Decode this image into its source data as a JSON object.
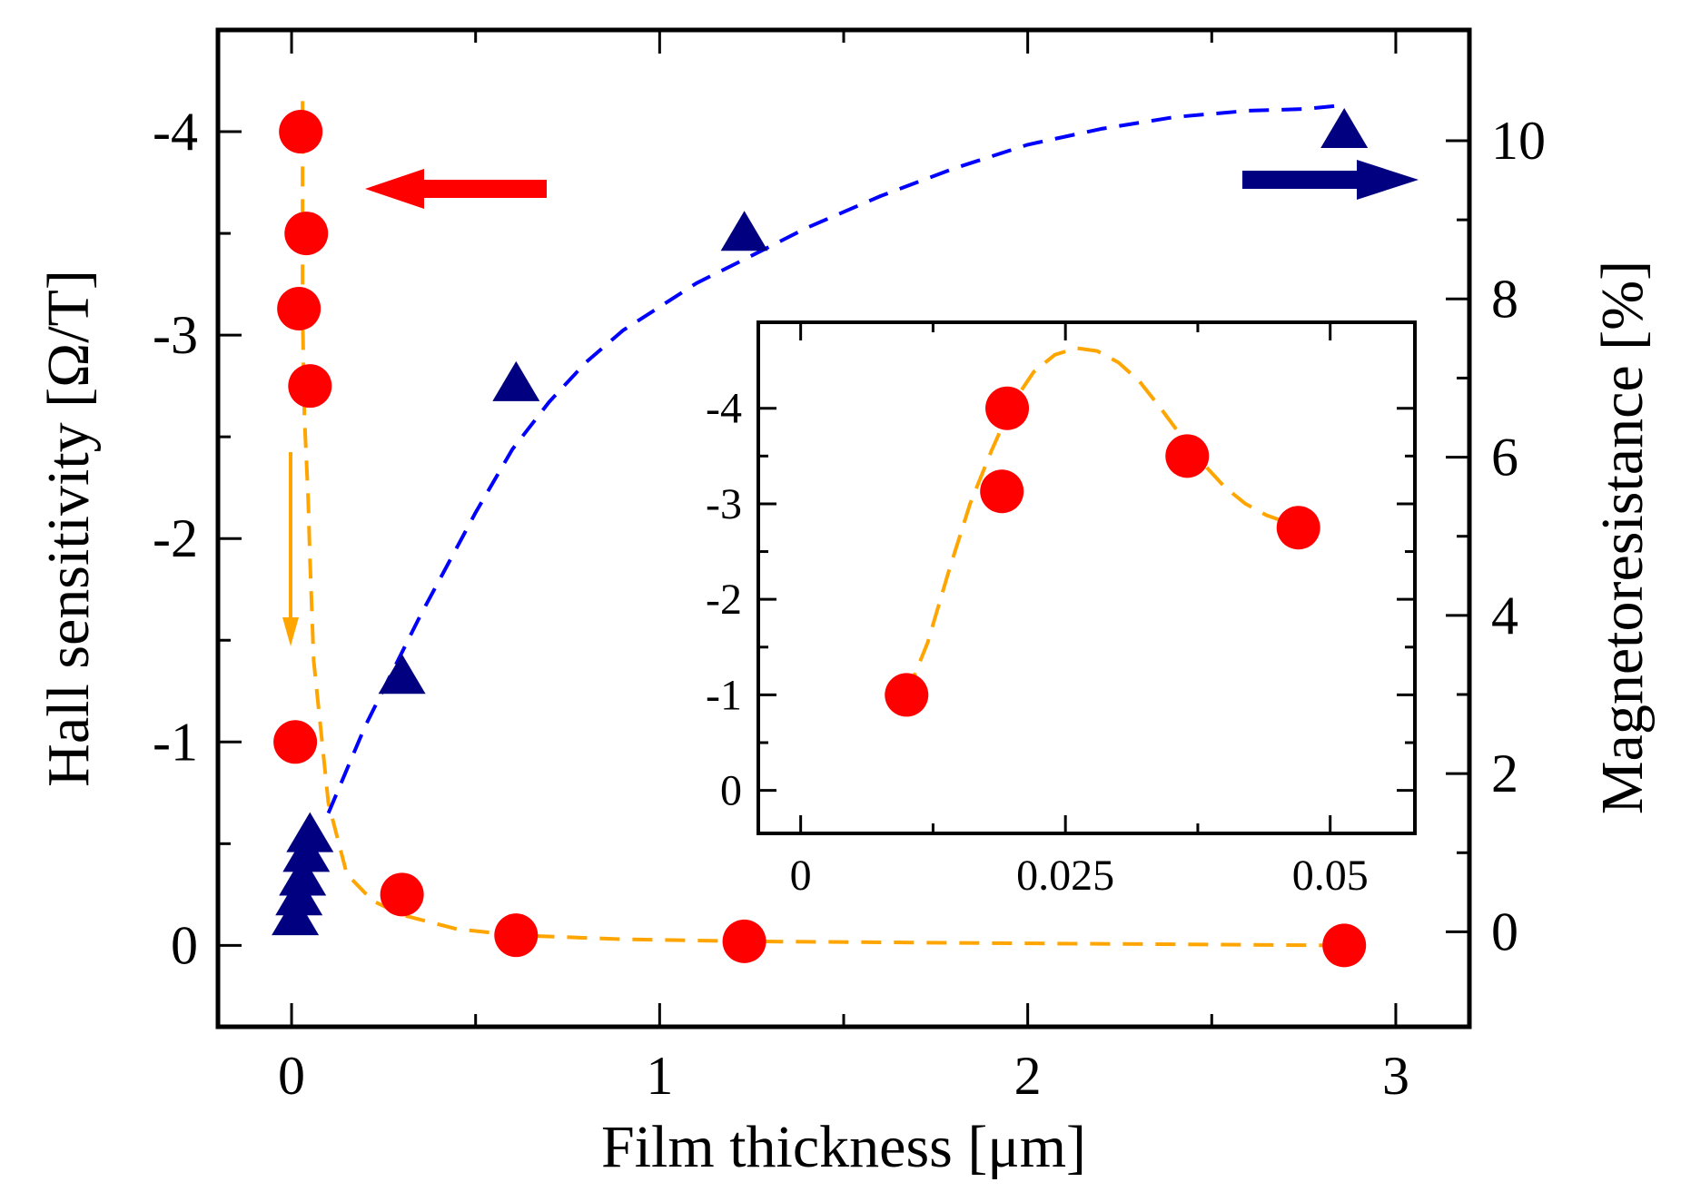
{
  "chart_data": [
    {
      "type": "scatter",
      "id": "main",
      "xlabel": "Film thickness [μm]",
      "ylabel_left": "Hall sensitivity [Ω/T]",
      "ylabel_right": "Magnetoresistance [%]",
      "xlim": [
        -0.2,
        3.2
      ],
      "ylim_left": [
        0.4,
        -4.5
      ],
      "ylim_right": [
        -1.2,
        11.4
      ],
      "x_ticks": [
        0,
        1,
        2,
        3
      ],
      "x_tick_labels": [
        "0",
        "1",
        "2",
        "3"
      ],
      "y_left_ticks": [
        0,
        -1,
        -2,
        -3,
        -4
      ],
      "y_left_tick_labels": [
        "0",
        "-1",
        "-2",
        "-3",
        "-4"
      ],
      "y_right_ticks": [
        0,
        2,
        4,
        6,
        8,
        10
      ],
      "y_right_tick_labels": [
        "0",
        "2",
        "4",
        "6",
        "8",
        "10"
      ],
      "series": [
        {
          "name": "Hall sensitivity",
          "axis": "left",
          "marker": "circle",
          "color": "#ff0000",
          "x": [
            0.01,
            0.02,
            0.025,
            0.04,
            0.05,
            0.3,
            0.61,
            1.23,
            2.86
          ],
          "y": [
            -1.0,
            -3.13,
            -4.0,
            -3.5,
            -2.75,
            -0.25,
            -0.05,
            -0.02,
            0.0
          ]
        },
        {
          "name": "Magnetoresistance",
          "axis": "right",
          "marker": "triangle",
          "color": "#000080",
          "x": [
            0.01,
            0.02,
            0.03,
            0.04,
            0.05,
            0.3,
            0.61,
            1.23,
            2.86
          ],
          "y": [
            0.15,
            0.4,
            0.65,
            0.95,
            1.2,
            3.2,
            6.9,
            8.8,
            10.1
          ]
        }
      ],
      "fit_curves": [
        {
          "name": "Hall sensitivity fit",
          "color": "#ffa500",
          "axis": "left",
          "x": [
            0.03,
            0.03,
            0.03,
            0.035,
            0.045,
            0.05,
            0.06,
            0.1,
            0.15,
            0.22,
            0.3,
            0.45,
            0.61,
            0.9,
            1.23,
            2.0,
            2.86
          ],
          "y": [
            -4.15,
            -3.8,
            -3.1,
            -2.6,
            -2.2,
            -1.9,
            -1.4,
            -0.7,
            -0.35,
            -0.22,
            -0.15,
            -0.08,
            -0.05,
            -0.03,
            -0.02,
            -0.01,
            0.0
          ]
        },
        {
          "name": "Magnetoresistance fit",
          "color": "#0000ff",
          "axis": "right",
          "x": [
            0.1,
            0.2,
            0.35,
            0.5,
            0.6,
            0.7,
            0.8,
            0.9,
            1.0,
            1.1,
            1.23,
            1.4,
            1.6,
            1.8,
            2.0,
            2.2,
            2.4,
            2.6,
            2.75,
            2.86
          ],
          "y": [
            1.5,
            2.6,
            4.0,
            5.3,
            6.1,
            6.7,
            7.2,
            7.6,
            7.9,
            8.2,
            8.5,
            8.9,
            9.3,
            9.65,
            9.95,
            10.15,
            10.3,
            10.38,
            10.4,
            10.45
          ]
        }
      ],
      "annotations": [
        {
          "type": "arrow",
          "direction": "left",
          "color": "#ff0000",
          "meaning": "left axis series"
        },
        {
          "type": "arrow",
          "direction": "right",
          "color": "#000080",
          "meaning": "right axis series"
        },
        {
          "type": "arrow",
          "direction": "down",
          "color": "#ffa500"
        }
      ]
    },
    {
      "type": "scatter",
      "id": "inset",
      "xlim": [
        -0.004,
        0.058
      ],
      "ylim": [
        0.45,
        -4.9
      ],
      "x_ticks": [
        0,
        0.025,
        0.05
      ],
      "x_tick_labels": [
        "0",
        "0.025",
        "0.05"
      ],
      "y_ticks": [
        0,
        -1,
        -2,
        -3,
        -4
      ],
      "y_tick_labels": [
        "0",
        "-1",
        "-2",
        "-3",
        "-4"
      ],
      "series": [
        {
          "name": "Hall sensitivity",
          "marker": "circle",
          "color": "#ff0000",
          "x": [
            0.01,
            0.019,
            0.0195,
            0.0365,
            0.047
          ],
          "y": [
            -1.0,
            -3.13,
            -4.0,
            -3.5,
            -2.75
          ]
        }
      ],
      "fit_curves": [
        {
          "name": "Hall sensitivity fit",
          "color": "#ffa500",
          "x": [
            0.01,
            0.012,
            0.014,
            0.016,
            0.018,
            0.02,
            0.022,
            0.024,
            0.026,
            0.028,
            0.03,
            0.032,
            0.034,
            0.036,
            0.038,
            0.04,
            0.042,
            0.044,
            0.046,
            0.047
          ],
          "y": [
            -1.0,
            -1.55,
            -2.3,
            -3.0,
            -3.55,
            -4.05,
            -4.38,
            -4.56,
            -4.63,
            -4.6,
            -4.48,
            -4.28,
            -4.0,
            -3.7,
            -3.42,
            -3.18,
            -3.0,
            -2.88,
            -2.8,
            -2.75
          ]
        }
      ]
    }
  ]
}
